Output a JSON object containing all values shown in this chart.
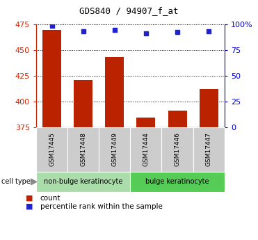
{
  "title": "GDS840 / 94907_f_at",
  "samples": [
    "GSM17445",
    "GSM17448",
    "GSM17449",
    "GSM17444",
    "GSM17446",
    "GSM17447"
  ],
  "counts": [
    469,
    421,
    443,
    384,
    391,
    412
  ],
  "percentiles": [
    98,
    93,
    94,
    91,
    92,
    93
  ],
  "ylim_left": [
    375,
    475
  ],
  "ylim_right": [
    0,
    100
  ],
  "yticks_left": [
    375,
    400,
    425,
    450,
    475
  ],
  "yticks_right": [
    0,
    25,
    50,
    75,
    100
  ],
  "bar_color": "#bb2200",
  "dot_color": "#2222cc",
  "bar_base": 375,
  "groups": [
    {
      "label": "non-bulge keratinocyte",
      "indices": [
        0,
        1,
        2
      ],
      "color": "#aaddaa"
    },
    {
      "label": "bulge keratinocyte",
      "indices": [
        3,
        4,
        5
      ],
      "color": "#55cc55"
    }
  ],
  "sample_box_color": "#cccccc",
  "legend_count_label": "count",
  "legend_percentile_label": "percentile rank within the sample",
  "cell_type_label": "cell type",
  "background_color": "#ffffff",
  "plot_bg_color": "#ffffff",
  "grid_color": "#000000",
  "left_tick_color": "#cc2200",
  "right_tick_color": "#0000cc",
  "figsize": [
    3.71,
    3.45
  ],
  "dpi": 100
}
